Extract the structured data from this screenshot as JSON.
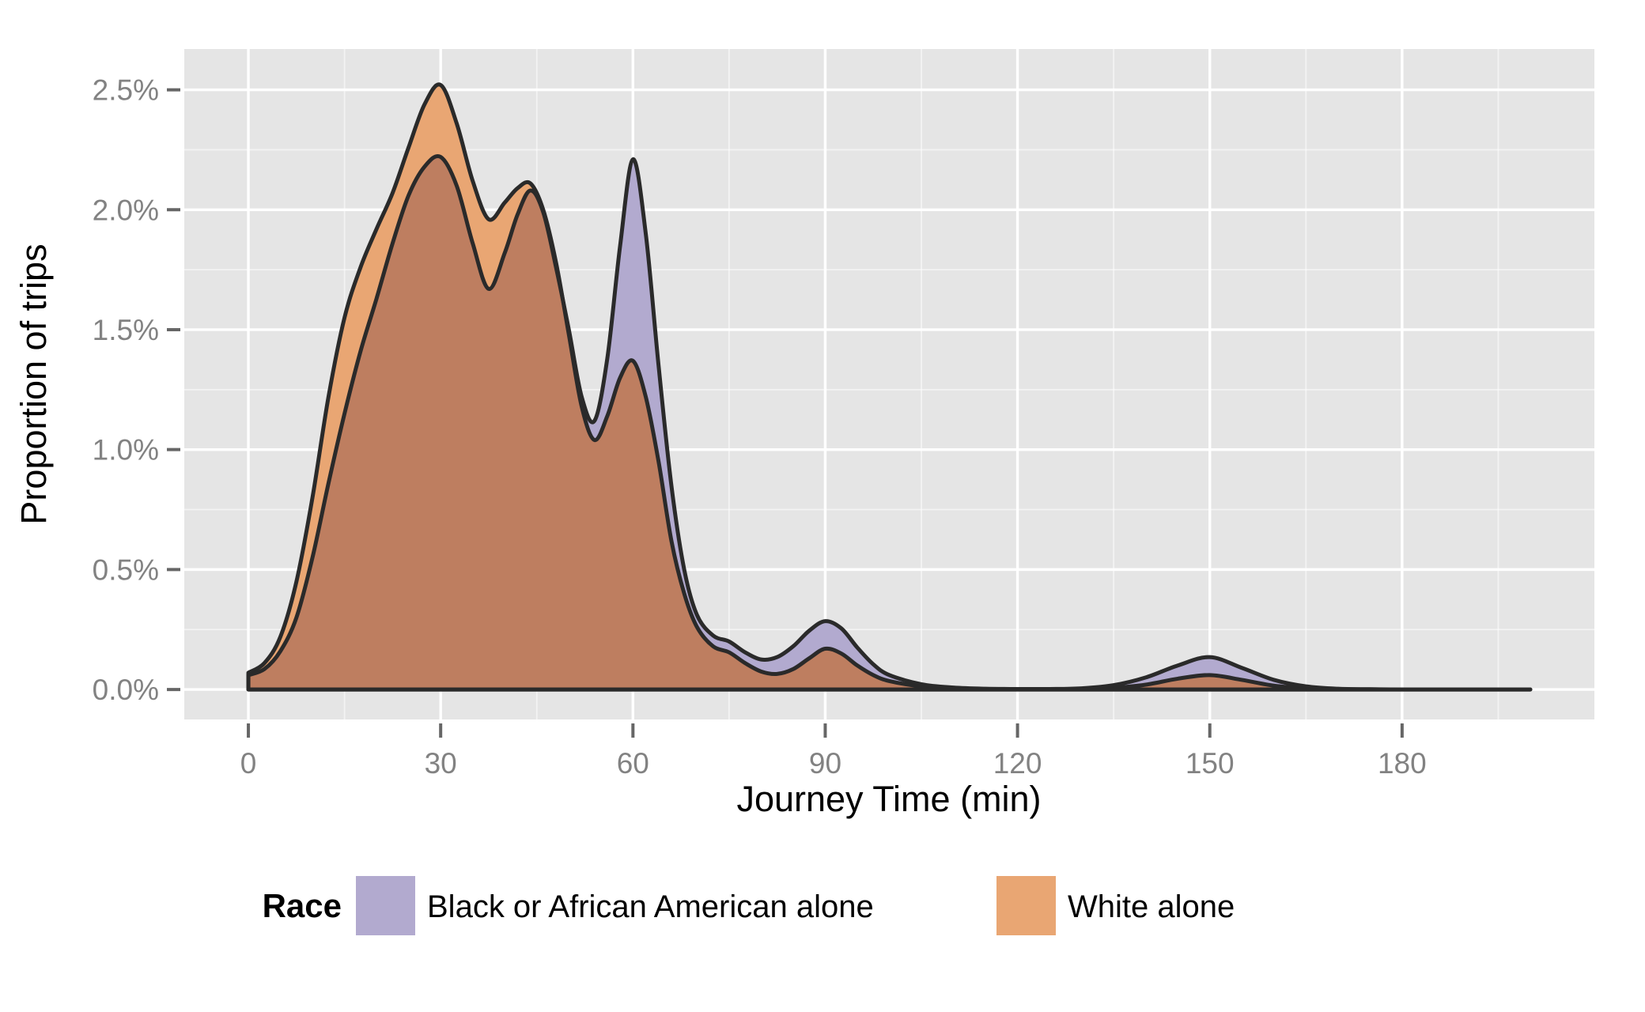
{
  "figure": {
    "background": "#FFFFFF"
  },
  "panel": {
    "background": "#E5E5E5",
    "grid_major_color": "#FFFFFF",
    "grid_minor_color": "#FFFFFF",
    "tick_mark_color": "#666666",
    "tick_label_color": "#828282"
  },
  "legend": {
    "title": "Race",
    "items": [
      {
        "label": "Black or African American alone",
        "color": "#B2AACF"
      },
      {
        "label": "White alone",
        "color": "#E9A673"
      }
    ]
  },
  "chart_data": {
    "type": "area",
    "subtype": "overlapping-density",
    "title": "",
    "xlabel": "Journey Time (min)",
    "ylabel": "Proportion of trips",
    "xlim": [
      -10,
      210
    ],
    "ylim_pct": [
      -0.125,
      2.67
    ],
    "grid": true,
    "legend_position": "bottom",
    "x_ticks": {
      "values": [
        0,
        30,
        60,
        90,
        120,
        150,
        180
      ],
      "labels": [
        "0",
        "30",
        "60",
        "90",
        "120",
        "150",
        "180"
      ]
    },
    "y_ticks": {
      "values": [
        0.0,
        0.5,
        1.0,
        1.5,
        2.0,
        2.5
      ],
      "labels": [
        "0.0%",
        "0.5%",
        "1.0%",
        "1.5%",
        "2.0%",
        "2.5%"
      ]
    },
    "x_minor_ticks": [
      15,
      45,
      75,
      105,
      135,
      165,
      195
    ],
    "y_minor_ticks": [
      0.25,
      0.75,
      1.25,
      1.75,
      2.25
    ],
    "outline_color": "#2A2A2A",
    "overlap_fill": "#BE7E60",
    "x_minutes": [
      0,
      2.5,
      5,
      7.5,
      10,
      12.5,
      15,
      17.5,
      20,
      22.5,
      25,
      27.5,
      30,
      32.5,
      35,
      37.5,
      40,
      42,
      44,
      46,
      48,
      50,
      52,
      54,
      56,
      58,
      60,
      62,
      64,
      66,
      68,
      70,
      72.5,
      75,
      77.5,
      80,
      82.5,
      85,
      87.5,
      90,
      92.5,
      95,
      97.5,
      100,
      105,
      110,
      115,
      120,
      125,
      130,
      135,
      140,
      145,
      150,
      155,
      160,
      165,
      170,
      175,
      180,
      190,
      200
    ],
    "series": [
      {
        "name": "Black or African American alone",
        "color": "#B2AACF",
        "peaks_note": "peaks ~2.2% at 30min, ~2.1% at 44min, ~2.2% at 60min, bumps at 90 and 150min",
        "y_pct": [
          0.06,
          0.085,
          0.16,
          0.3,
          0.55,
          0.86,
          1.15,
          1.41,
          1.63,
          1.86,
          2.06,
          2.18,
          2.22,
          2.1,
          1.86,
          1.67,
          1.82,
          1.98,
          2.08,
          1.99,
          1.76,
          1.5,
          1.22,
          1.12,
          1.38,
          1.85,
          2.21,
          1.9,
          1.35,
          0.85,
          0.5,
          0.31,
          0.225,
          0.2,
          0.155,
          0.125,
          0.135,
          0.18,
          0.245,
          0.285,
          0.255,
          0.175,
          0.105,
          0.06,
          0.022,
          0.008,
          0.003,
          0.002,
          0.002,
          0.005,
          0.018,
          0.05,
          0.1,
          0.135,
          0.09,
          0.04,
          0.013,
          0.003,
          0.001,
          0.0,
          0.0,
          0.0
        ]
      },
      {
        "name": "White alone",
        "color": "#E9A673",
        "peaks_note": "peaks ~2.5% at 30min, ~2.1% at 44min, ~1.4% at 60min, small bumps at 90 and 150min",
        "y_pct": [
          0.07,
          0.11,
          0.22,
          0.45,
          0.8,
          1.22,
          1.55,
          1.76,
          1.92,
          2.07,
          2.26,
          2.44,
          2.52,
          2.36,
          2.12,
          1.96,
          2.03,
          2.09,
          2.11,
          2.0,
          1.78,
          1.48,
          1.18,
          1.04,
          1.14,
          1.3,
          1.37,
          1.22,
          0.95,
          0.62,
          0.4,
          0.26,
          0.18,
          0.155,
          0.11,
          0.075,
          0.065,
          0.085,
          0.13,
          0.17,
          0.15,
          0.1,
          0.06,
          0.035,
          0.013,
          0.005,
          0.002,
          0.001,
          0.001,
          0.002,
          0.007,
          0.02,
          0.045,
          0.06,
          0.04,
          0.016,
          0.005,
          0.001,
          0.0005,
          0.0,
          0.0,
          0.0
        ]
      }
    ]
  }
}
